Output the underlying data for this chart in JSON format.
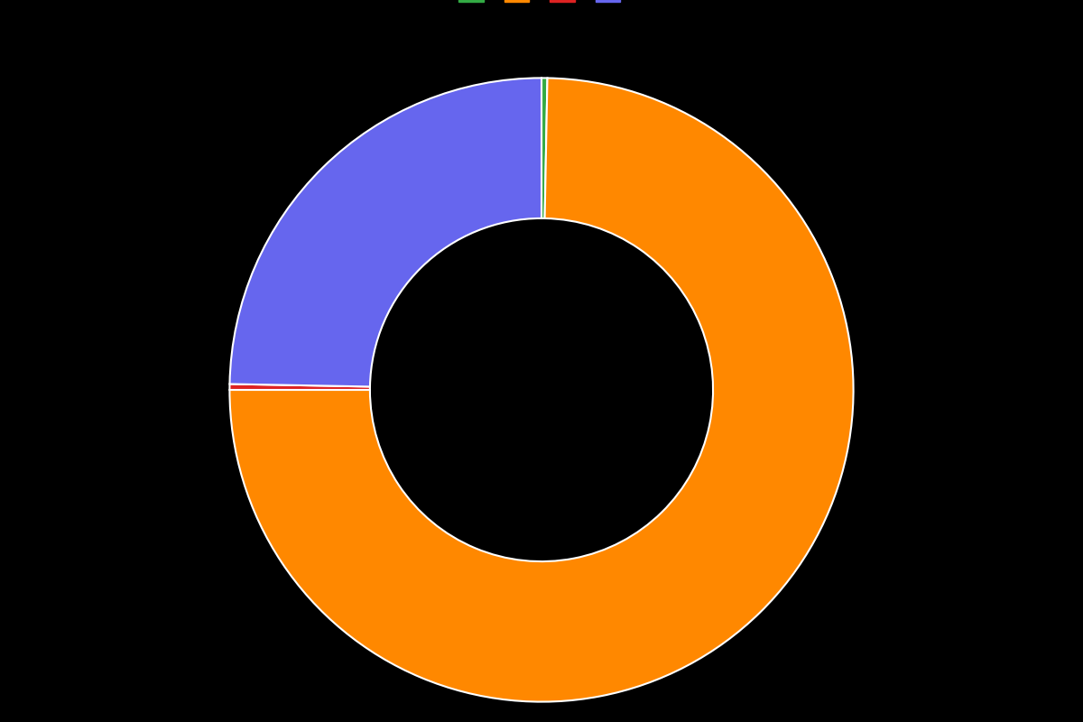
{
  "slices": [
    0.3,
    74.7,
    0.3,
    24.7
  ],
  "colors": [
    "#33aa44",
    "#ff8800",
    "#dd2222",
    "#6666ee"
  ],
  "legend_labels": [
    "",
    "",
    "",
    ""
  ],
  "background_color": "#000000",
  "wedge_linewidth": 1.5,
  "wedge_linecolor": "#ffffff",
  "donut_width": 0.45,
  "startangle": 90,
  "figsize": [
    12,
    8
  ],
  "dpi": 100
}
